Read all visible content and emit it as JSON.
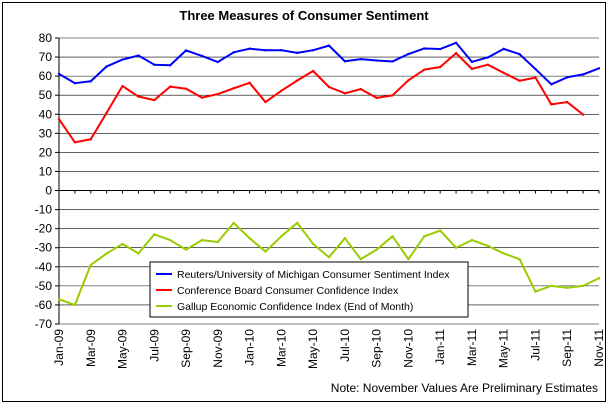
{
  "chart_data": {
    "type": "line",
    "title": "Three Measures of Consumer Sentiment",
    "xlabel": "",
    "ylabel": "",
    "ylim": [
      -70,
      80
    ],
    "yticks": [
      "80",
      "70",
      "60",
      "50",
      "40",
      "30",
      "20",
      "10",
      "0",
      "-10",
      "-20",
      "-30",
      "-40",
      "-50",
      "-60",
      "-70"
    ],
    "grid": true,
    "legend_position": "center-right",
    "x": [
      "Jan-09",
      "Feb-09",
      "Mar-09",
      "Apr-09",
      "May-09",
      "Jun-09",
      "Jul-09",
      "Aug-09",
      "Sep-09",
      "Oct-09",
      "Nov-09",
      "Dec-09",
      "Jan-10",
      "Feb-10",
      "Mar-10",
      "Apr-10",
      "May-10",
      "Jun-10",
      "Jul-10",
      "Aug-10",
      "Sep-10",
      "Oct-10",
      "Nov-10",
      "Dec-10",
      "Jan-11",
      "Feb-11",
      "Mar-11",
      "Apr-11",
      "May-11",
      "Jun-11",
      "Jul-11",
      "Aug-11",
      "Sep-11",
      "Oct-11",
      "Nov-11"
    ],
    "xtick_labels": [
      "Jan-09",
      "Mar-09",
      "May-09",
      "Jul-09",
      "Sep-09",
      "Nov-09",
      "Jan-10",
      "Mar-10",
      "May-10",
      "Jul-10",
      "Sep-10",
      "Nov-10",
      "Jan-11",
      "Mar-11",
      "May-11",
      "Jul-11",
      "Sep-11",
      "Nov-11"
    ],
    "series": [
      {
        "name": "Reuters/University of Michigan Consumer Sentiment Index",
        "color": "#0000ff",
        "values": [
          61.2,
          56.3,
          57.3,
          65.1,
          68.7,
          70.8,
          66.0,
          65.7,
          73.5,
          70.6,
          67.4,
          72.5,
          74.4,
          73.6,
          73.6,
          72.2,
          73.6,
          76.0,
          67.8,
          68.9,
          68.2,
          67.7,
          71.6,
          74.5,
          74.2,
          77.5,
          67.5,
          69.8,
          74.3,
          71.5,
          63.7,
          55.7,
          59.4,
          60.9,
          64.1
        ]
      },
      {
        "name": "Conference Board Consumer Confidence Index",
        "color": "#ff0000",
        "values": [
          37.4,
          25.3,
          26.9,
          40.8,
          54.8,
          49.3,
          47.4,
          54.5,
          53.4,
          48.7,
          50.6,
          53.6,
          56.5,
          46.4,
          52.3,
          57.7,
          62.7,
          54.3,
          51.0,
          53.2,
          48.6,
          49.9,
          57.8,
          63.4,
          64.8,
          72.0,
          63.8,
          66.0,
          61.7,
          57.6,
          59.2,
          45.2,
          46.4,
          39.8,
          null
        ]
      },
      {
        "name": "Gallup Economic Confidence Index (End of Month)",
        "color": "#99cc00",
        "values": [
          -57,
          -60,
          -39,
          -33,
          -28,
          -33,
          -23,
          -26,
          -31,
          -26,
          -27,
          -17,
          -25,
          -32,
          -24,
          -17,
          -28,
          -35,
          -25,
          -36,
          -31,
          -24,
          -36,
          -24,
          -21,
          -30,
          -26,
          -29,
          -33,
          -36,
          -53,
          -50,
          -51,
          -50,
          -46
        ]
      }
    ],
    "note": "Note: November Values Are Preliminary Estimates"
  },
  "colors": {
    "grid": "#000000",
    "background": "#ffffff"
  }
}
